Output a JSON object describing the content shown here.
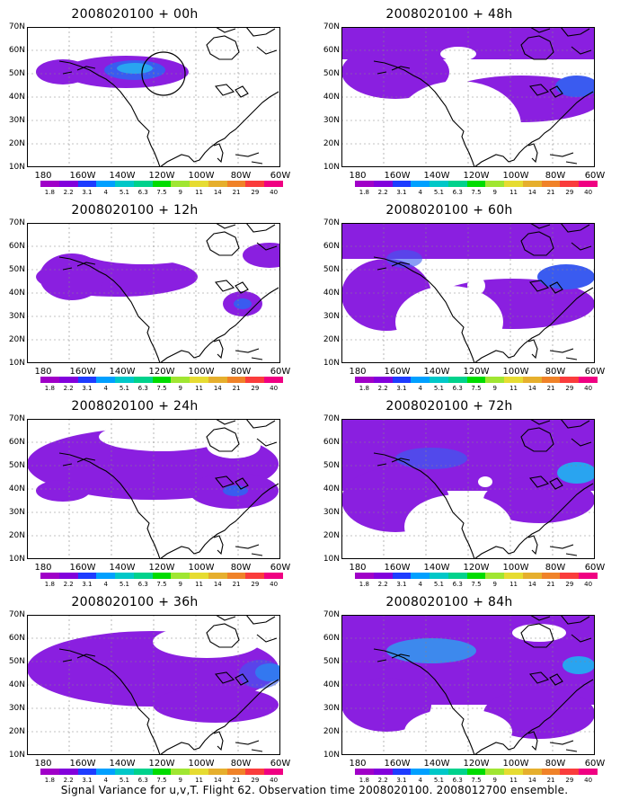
{
  "caption": "Signal Variance for u,v,T. Flight 62. Observation time 2008020100. 2008012700 ensemble.",
  "panels": [
    {
      "title": "2008020100 + 00h"
    },
    {
      "title": "2008020100 + 12h"
    },
    {
      "title": "2008020100 + 24h"
    },
    {
      "title": "2008020100 + 36h"
    },
    {
      "title": "2008020100 + 48h"
    },
    {
      "title": "2008020100 + 60h"
    },
    {
      "title": "2008020100 + 72h"
    },
    {
      "title": "2008020100 + 84h"
    }
  ],
  "axes": {
    "lat_labels": [
      "70N",
      "60N",
      "50N",
      "40N",
      "30N",
      "20N",
      "10N"
    ],
    "lon_labels": [
      "180",
      "160W",
      "140W",
      "120W",
      "100W",
      "80W",
      "60W"
    ]
  },
  "colorbar": {
    "colors": [
      "#a000c8",
      "#8200dc",
      "#1e3cff",
      "#00a0ff",
      "#00c8c8",
      "#00d28c",
      "#00dc00",
      "#a0e632",
      "#e6dc32",
      "#e6af2d",
      "#f08228",
      "#fa3c3c",
      "#f00082"
    ],
    "labels": [
      "1.8",
      "2.2",
      "3.1",
      "4",
      "5.1",
      "6.3",
      "7.5",
      "9",
      "11",
      "14",
      "21",
      "29",
      "40"
    ]
  },
  "fill_colors": {
    "ocean_purple": "#8a1fe0",
    "mid_purple": "#7a1ad2",
    "blue": "#3a5bf0",
    "light_blue": "#29a4f0"
  }
}
